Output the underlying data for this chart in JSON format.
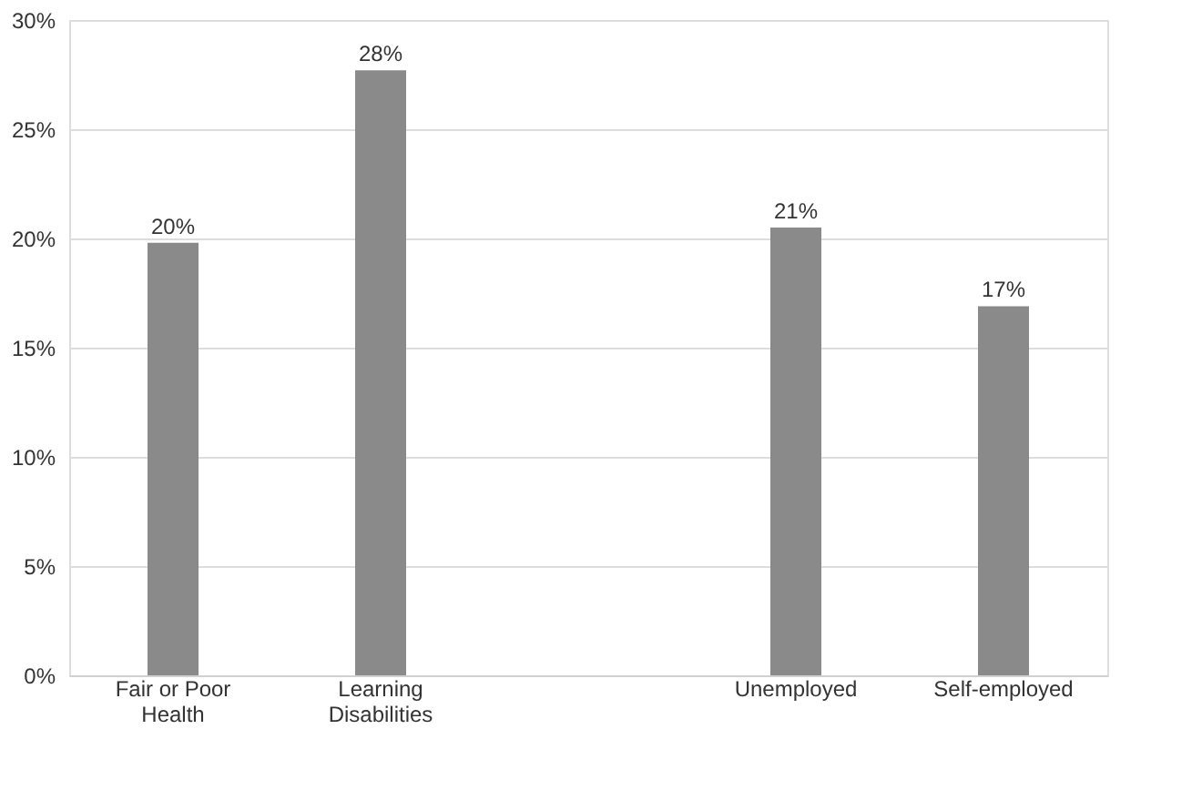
{
  "chart_data": {
    "type": "bar",
    "categories": [
      "Fair or Poor Health",
      "Learning Disabilities",
      null,
      "Unemployed",
      "Self-employed"
    ],
    "values": [
      19.8,
      27.7,
      null,
      20.5,
      16.9
    ],
    "value_labels": [
      "20%",
      "28%",
      null,
      "21%",
      "17%"
    ],
    "color": "#8a8a8a",
    "ylim": [
      0,
      30
    ],
    "yticks": [
      {
        "value": 0,
        "label": "0%"
      },
      {
        "value": 5,
        "label": "5%"
      },
      {
        "value": 10,
        "label": "10%"
      },
      {
        "value": 15,
        "label": "15%"
      },
      {
        "value": 20,
        "label": "20%"
      },
      {
        "value": 25,
        "label": "25%"
      },
      {
        "value": 30,
        "label": "30%"
      }
    ],
    "grid": "y"
  }
}
